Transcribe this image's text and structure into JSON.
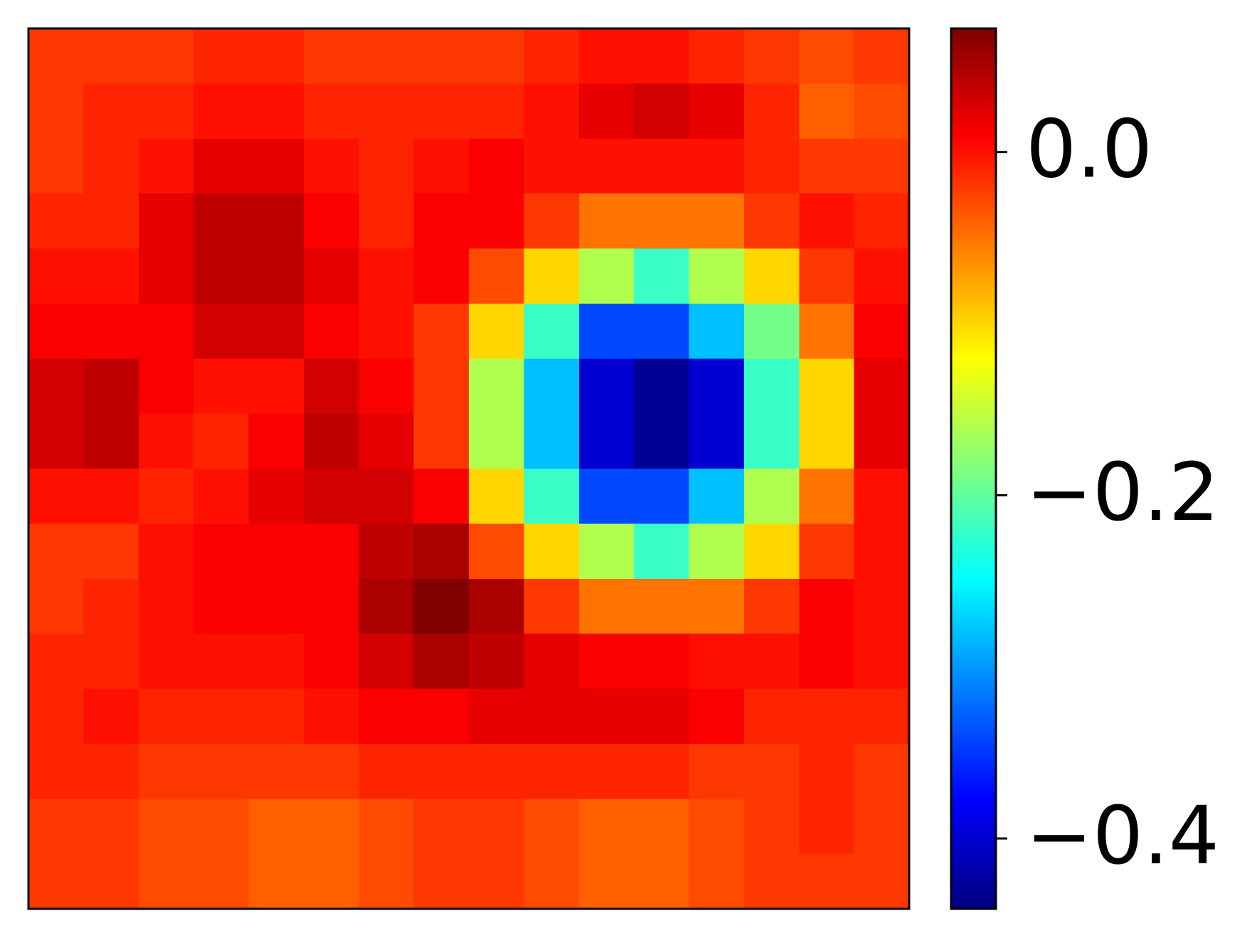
{
  "chart_data": {
    "type": "heatmap",
    "colormap": "jet",
    "clim": [
      -0.441,
      0.072
    ],
    "cticks": [
      {
        "value": -0.4,
        "label": "−0.4"
      },
      {
        "value": -0.2,
        "label": "−0.2"
      },
      {
        "value": 0.0,
        "label": "0.0"
      }
    ],
    "z": [
      [
        -0.02,
        -0.02,
        -0.02,
        -0.01,
        -0.01,
        -0.02,
        -0.02,
        -0.02,
        -0.02,
        -0.01,
        0.0,
        0.0,
        -0.01,
        -0.02,
        -0.03,
        -0.02
      ],
      [
        -0.02,
        -0.01,
        -0.01,
        0.0,
        0.0,
        -0.01,
        -0.01,
        -0.01,
        -0.01,
        0.0,
        0.02,
        0.03,
        0.02,
        -0.01,
        -0.04,
        -0.03
      ],
      [
        -0.02,
        -0.01,
        0.0,
        0.02,
        0.02,
        0.0,
        -0.01,
        0.0,
        0.01,
        0.0,
        0.0,
        0.0,
        0.0,
        -0.01,
        -0.02,
        -0.02
      ],
      [
        -0.01,
        -0.01,
        0.02,
        0.04,
        0.04,
        0.01,
        -0.01,
        0.01,
        0.01,
        -0.02,
        -0.05,
        -0.05,
        -0.05,
        -0.02,
        0.0,
        -0.01
      ],
      [
        0.0,
        0.0,
        0.02,
        0.04,
        0.04,
        0.02,
        0.0,
        0.01,
        -0.03,
        -0.1,
        -0.16,
        -0.22,
        -0.16,
        -0.1,
        -0.02,
        0.0
      ],
      [
        0.01,
        0.01,
        0.01,
        0.03,
        0.03,
        0.01,
        0.0,
        -0.02,
        -0.1,
        -0.22,
        -0.34,
        -0.34,
        -0.28,
        -0.19,
        -0.05,
        0.01
      ],
      [
        0.03,
        0.04,
        0.01,
        0.0,
        0.0,
        0.03,
        0.01,
        -0.02,
        -0.16,
        -0.28,
        -0.4,
        -0.43,
        -0.4,
        -0.22,
        -0.1,
        0.02
      ],
      [
        0.03,
        0.04,
        0.0,
        -0.01,
        0.01,
        0.04,
        0.02,
        -0.02,
        -0.16,
        -0.28,
        -0.4,
        -0.43,
        -0.4,
        -0.22,
        -0.1,
        0.02
      ],
      [
        0.0,
        0.0,
        -0.01,
        0.0,
        0.02,
        0.03,
        0.03,
        0.01,
        -0.1,
        -0.22,
        -0.34,
        -0.34,
        -0.28,
        -0.16,
        -0.05,
        0.0
      ],
      [
        -0.02,
        -0.02,
        0.0,
        0.01,
        0.01,
        0.01,
        0.04,
        0.05,
        -0.03,
        -0.1,
        -0.16,
        -0.22,
        -0.16,
        -0.1,
        -0.02,
        0.0
      ],
      [
        -0.02,
        -0.01,
        0.0,
        0.01,
        0.01,
        0.01,
        0.05,
        0.07,
        0.05,
        -0.02,
        -0.05,
        -0.05,
        -0.05,
        -0.02,
        0.01,
        0.0
      ],
      [
        -0.01,
        -0.01,
        0.0,
        0.0,
        0.0,
        0.01,
        0.03,
        0.05,
        0.04,
        0.02,
        0.01,
        0.01,
        0.0,
        0.0,
        0.01,
        0.0
      ],
      [
        -0.01,
        0.0,
        -0.01,
        -0.01,
        -0.01,
        0.0,
        0.01,
        0.01,
        0.02,
        0.02,
        0.02,
        0.02,
        0.01,
        -0.01,
        -0.01,
        -0.01
      ],
      [
        -0.01,
        -0.01,
        -0.02,
        -0.02,
        -0.02,
        -0.02,
        -0.01,
        -0.01,
        -0.01,
        -0.01,
        -0.01,
        -0.01,
        -0.02,
        -0.02,
        -0.01,
        -0.02
      ],
      [
        -0.02,
        -0.02,
        -0.03,
        -0.03,
        -0.04,
        -0.04,
        -0.03,
        -0.02,
        -0.02,
        -0.03,
        -0.04,
        -0.04,
        -0.03,
        -0.02,
        -0.01,
        -0.02
      ],
      [
        -0.02,
        -0.02,
        -0.03,
        -0.03,
        -0.04,
        -0.04,
        -0.03,
        -0.02,
        -0.02,
        -0.03,
        -0.04,
        -0.04,
        -0.03,
        -0.02,
        -0.02,
        -0.02
      ]
    ]
  }
}
